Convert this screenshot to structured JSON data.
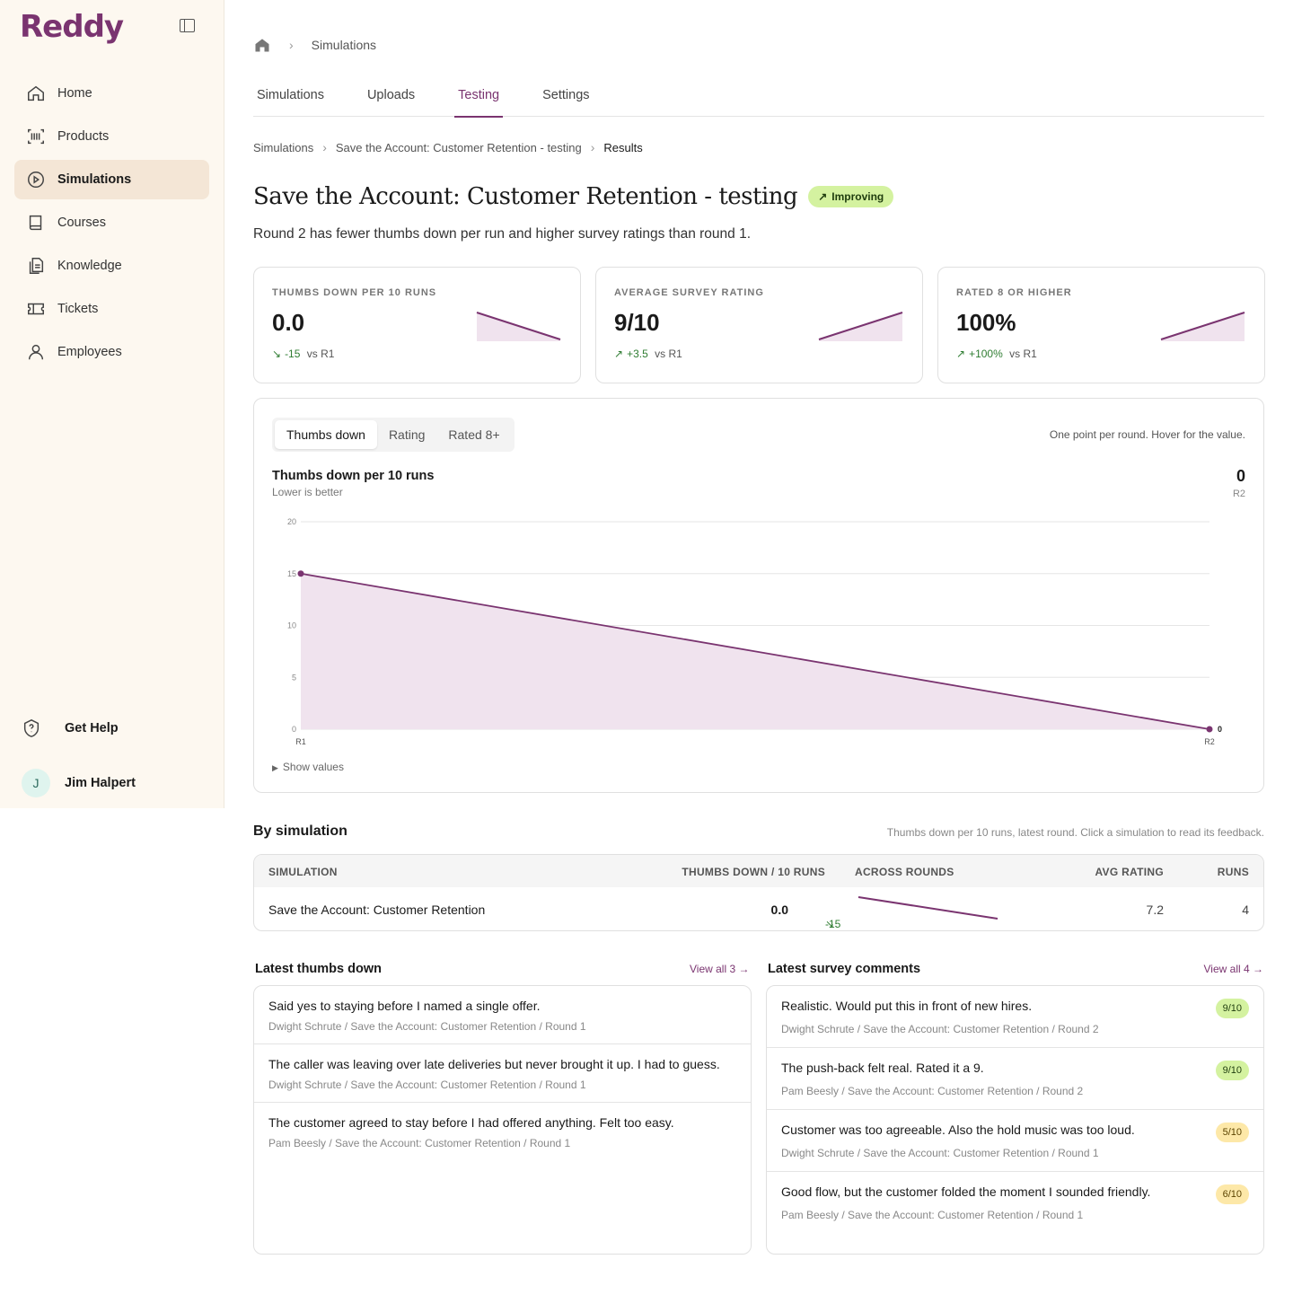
{
  "app": {
    "name": "Reddy"
  },
  "sidebar": {
    "items": [
      {
        "label": "Home",
        "icon": "home-icon"
      },
      {
        "label": "Products",
        "icon": "barcode-icon"
      },
      {
        "label": "Simulations",
        "icon": "play-circle-icon"
      },
      {
        "label": "Courses",
        "icon": "book-icon"
      },
      {
        "label": "Knowledge",
        "icon": "documents-icon"
      },
      {
        "label": "Tickets",
        "icon": "ticket-icon"
      },
      {
        "label": "Employees",
        "icon": "user-icon"
      }
    ],
    "help": "Get Help",
    "user": {
      "initial": "J",
      "name": "Jim Halpert"
    }
  },
  "topcrumb": {
    "current": "Simulations"
  },
  "tabs": [
    "Simulations",
    "Uploads",
    "Testing",
    "Settings"
  ],
  "breadcrumb": [
    "Simulations",
    "Save the Account: Customer Retention - testing",
    "Results"
  ],
  "title": "Save the Account: Customer Retention - testing",
  "badge": "Improving",
  "subtitle": "Round 2 has fewer thumbs down per run and higher survey ratings than round 1.",
  "cards": [
    {
      "label": "THUMBS DOWN PER 10 RUNS",
      "value": "0.0",
      "delta": "-15",
      "vs": "vs R1",
      "trend": [
        15,
        0
      ]
    },
    {
      "label": "AVERAGE SURVEY RATING",
      "value": "9/10",
      "delta": "+3.5",
      "vs": "vs R1",
      "trend": [
        5.5,
        9
      ]
    },
    {
      "label": "RATED 8 OR HIGHER",
      "value": "100%",
      "delta": "+100%",
      "vs": "vs R1",
      "trend": [
        0,
        100
      ]
    }
  ],
  "chart_panel": {
    "segments": [
      "Thumbs down",
      "Rating",
      "Rated 8+"
    ],
    "hint": "One point per round. Hover for the value.",
    "current_value": "0",
    "current_round": "R2",
    "show_values": "Show values",
    "subtitle": "Lower is better"
  },
  "chart_data": {
    "type": "area",
    "title": "Thumbs down per 10 runs",
    "categories": [
      "R1",
      "R2"
    ],
    "values": [
      15,
      0
    ],
    "ylim": [
      0,
      20
    ],
    "yticks": [
      0,
      5,
      10,
      15,
      20
    ],
    "grid": true,
    "last_label": "0"
  },
  "by_simulation": {
    "title": "By simulation",
    "hint": "Thumbs down per 10 runs, latest round. Click a simulation to read its feedback.",
    "headers": [
      "SIMULATION",
      "THUMBS DOWN / 10 RUNS",
      "ACROSS ROUNDS",
      "AVG RATING",
      "RUNS"
    ],
    "rows": [
      {
        "name": "Save the Account: Customer Retention",
        "thumbs": "0.0",
        "delta": "-15",
        "trend": [
          15,
          0
        ],
        "rating": "7.2",
        "runs": "4"
      }
    ]
  },
  "thumbs_down": {
    "title": "Latest thumbs down",
    "view_all": "View all 3",
    "items": [
      {
        "text": "Said yes to staying before I named a single offer.",
        "meta": "Dwight Schrute / Save the Account: Customer Retention / Round 1"
      },
      {
        "text": "The caller was leaving over late deliveries but never brought it up. I had to guess.",
        "meta": "Dwight Schrute / Save the Account: Customer Retention / Round 1"
      },
      {
        "text": "The customer agreed to stay before I had offered anything. Felt too easy.",
        "meta": "Pam Beesly / Save the Account: Customer Retention / Round 1"
      }
    ]
  },
  "survey": {
    "title": "Latest survey comments",
    "view_all": "View all 4",
    "items": [
      {
        "text": "Realistic. Would put this in front of new hires.",
        "meta": "Dwight Schrute / Save the Account: Customer Retention / Round 2",
        "score": "9/10"
      },
      {
        "text": "The push-back felt real. Rated it a 9.",
        "meta": "Pam Beesly / Save the Account: Customer Retention / Round 2",
        "score": "9/10"
      },
      {
        "text": "Customer was too agreeable. Also the hold music was too loud.",
        "meta": "Dwight Schrute / Save the Account: Customer Retention / Round 1",
        "score": "5/10"
      },
      {
        "text": "Good flow, but the customer folded the moment I sounded friendly.",
        "meta": "Pam Beesly / Save the Account: Customer Retention / Round 1",
        "score": "6/10"
      }
    ]
  },
  "colors": {
    "accent": "#7a3470",
    "fill": "#f0e3ee",
    "good": "#2f7d32"
  }
}
